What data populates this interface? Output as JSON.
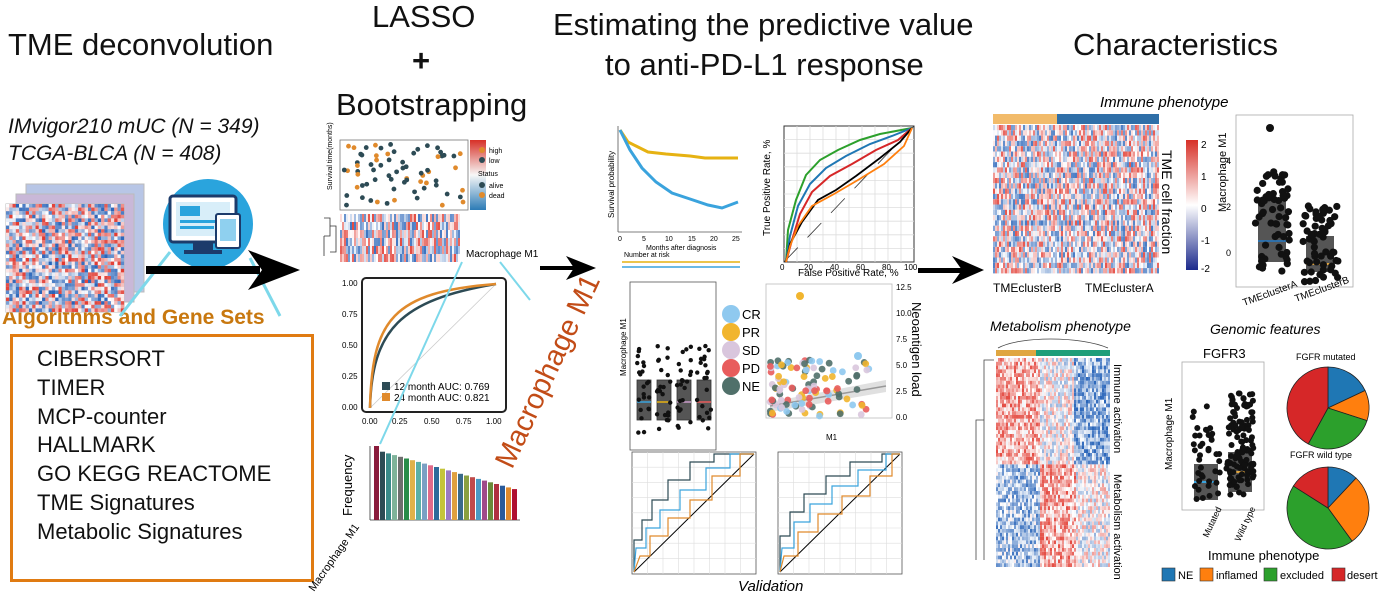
{
  "sections": {
    "tme_title": "TME deconvolution",
    "lasso": "LASSO",
    "plus": "+",
    "bootstrapping": "Bootstrapping",
    "predictive_line1": "Estimating the predictive value",
    "predictive_line2": "to anti-PD-L1 response",
    "characteristics": "Characteristics"
  },
  "cohorts": [
    "IMvigor210 mUC (N = 349)",
    "TCGA-BLCA  (N = 408)"
  ],
  "algorithms": {
    "title": "Algorithms and Gene Sets",
    "items": [
      "CIBERSORT",
      "TIMER",
      "MCP-counter",
      "HALLMARK",
      "GO KEGG REACTOME",
      "TME Signatures",
      "Metabolic Signatures"
    ]
  },
  "lasso_panel": {
    "survival_y": "Survival time(months)",
    "legend_risk": [
      "high",
      "low"
    ],
    "legend_status_title": "Status",
    "legend_status": [
      "alive",
      "dead"
    ],
    "heat_label": "Macrophage M1",
    "roc_legend": [
      "12 month AUC: 0.769",
      "24 month AUC: 0.821"
    ],
    "roc_ticks": [
      "0.00",
      "0.25",
      "0.50",
      "0.75",
      "1.00"
    ],
    "bar_ylabel": "Frequency",
    "bar_xlabel": "Macrophage M1",
    "diagonal_label": "Macrophage M1"
  },
  "predictive_panel": {
    "km_ylabel": "Survival probability",
    "km_xlabel": "Months after diagnosis",
    "km_xticks": [
      "0",
      "5",
      "10",
      "15",
      "20",
      "25"
    ],
    "km_risk_title": "Number at risk",
    "roc_ylabel": "True Positive Rate, %",
    "roc_xlabel": "False Positive Rate, %",
    "roc_ticks": [
      "0",
      "20",
      "40",
      "60",
      "80",
      "100"
    ],
    "box_ylabel": "Macrophage M1",
    "box_groups": [
      "CR",
      "PR",
      "SD",
      "PD"
    ],
    "response_legend": [
      "CR",
      "PR",
      "SD",
      "PD",
      "NE"
    ],
    "scatter_xlabel": "M1",
    "scatter_ylabel": "Neoantigen load",
    "scatter_yticks": [
      "12.5",
      "10.0",
      "7.5",
      "5.0",
      "2.5",
      "0.0"
    ],
    "validation": "Validation"
  },
  "char_panel": {
    "immune_title": "Immune phenotype",
    "tme_fraction": "TME cell fraction",
    "clusters": [
      "TMEclusterB",
      "TMEclusterA"
    ],
    "box_ylabel": "Macrophage M1",
    "box_groups": [
      "TMEclusterA",
      "TMEclusterB"
    ],
    "metabolism_title": "Metabolism phenotype",
    "immune_activation": "Immune activation",
    "metabolism_activation": "Metabolism activation",
    "genomic_title": "Genomic features",
    "fgfr3": "FGFR3",
    "fgfr_groups": [
      "Mutated",
      "Wild type"
    ],
    "pie1_title": "FGFR mutated",
    "pie2_title": "FGFR wild type",
    "legend_title": "Immune phenotype",
    "legend_items": [
      "NE",
      "inflamed",
      "excluded",
      "desert"
    ],
    "legend_colors": [
      "#1f77b4",
      "#ff7f0e",
      "#2ca02c",
      "#d62728"
    ],
    "colorbar_ticks": [
      "2",
      "1",
      "0",
      "-1",
      "-2"
    ],
    "box_yticks": [
      "4",
      "2",
      "0"
    ]
  },
  "chart_data": {
    "type": "pie",
    "title": "",
    "charts": [
      {
        "name": "FGFR mutated",
        "categories": [
          "NE",
          "inflamed",
          "excluded",
          "desert"
        ],
        "values": [
          18,
          12,
          28,
          42
        ]
      },
      {
        "name": "FGFR wild type",
        "categories": [
          "NE",
          "inflamed",
          "excluded",
          "desert"
        ],
        "values": [
          12,
          28,
          44,
          16
        ]
      }
    ],
    "lasso_roc_auc": [
      0.769,
      0.821
    ]
  }
}
